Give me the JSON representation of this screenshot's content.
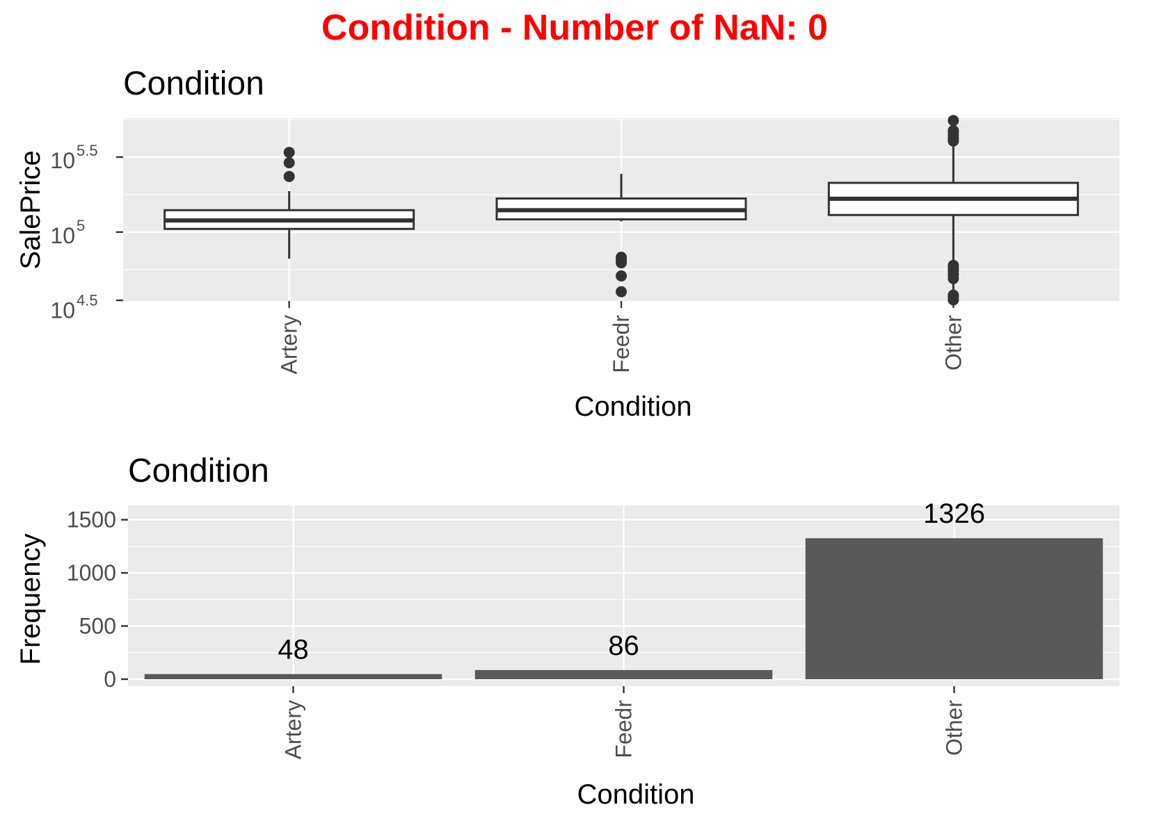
{
  "figure": {
    "suptitle": "Condition - Number of NaN: 0"
  },
  "chart_data": [
    {
      "type": "box",
      "title": "Condition",
      "xlabel": "Condition",
      "ylabel": "SalePrice",
      "y_scale": "log10",
      "ylim": [
        34700,
        575000
      ],
      "y_ticks": [
        {
          "value": 31623,
          "base": "10",
          "exp": "4.5"
        },
        {
          "value": 100000,
          "base": "10",
          "exp": "5"
        },
        {
          "value": 316228,
          "base": "10",
          "exp": "5.5"
        }
      ],
      "categories": [
        "Artery",
        "Feedr",
        "Other"
      ],
      "boxes": [
        {
          "category": "Artery",
          "q1": 105000,
          "median": 119500,
          "q3": 140000,
          "whisker_low": 66500,
          "whisker_high": 187500,
          "outliers": [
            235000,
            290000,
            340000
          ]
        },
        {
          "category": "Feedr",
          "q1": 121600,
          "median": 140000,
          "q3": 167500,
          "whisker_low": 118000,
          "whisker_high": 244600,
          "outliers": [
            62383,
            65000,
            68000,
            51000,
            40000
          ]
        },
        {
          "category": "Other",
          "q1": 130000,
          "median": 167000,
          "q3": 213000,
          "whisker_low": 39300,
          "whisker_high": 465000,
          "outliers": [
            555000,
            475000,
            460000,
            440000,
            420000,
            405000,
            60000,
            57000,
            55000,
            52000,
            49000,
            38000,
            37000,
            35300
          ]
        }
      ],
      "grid": true
    },
    {
      "type": "bar",
      "title": "Condition",
      "xlabel": "Condition",
      "ylabel": "Frequency",
      "ylim": [
        0,
        1720
      ],
      "y_ticks": [
        0,
        500,
        1000,
        1500
      ],
      "categories": [
        "Artery",
        "Feedr",
        "Other"
      ],
      "values": [
        48,
        86,
        1326
      ],
      "data_labels": [
        "48",
        "86",
        "1326"
      ],
      "bar_color": "#595959",
      "grid": true
    }
  ]
}
